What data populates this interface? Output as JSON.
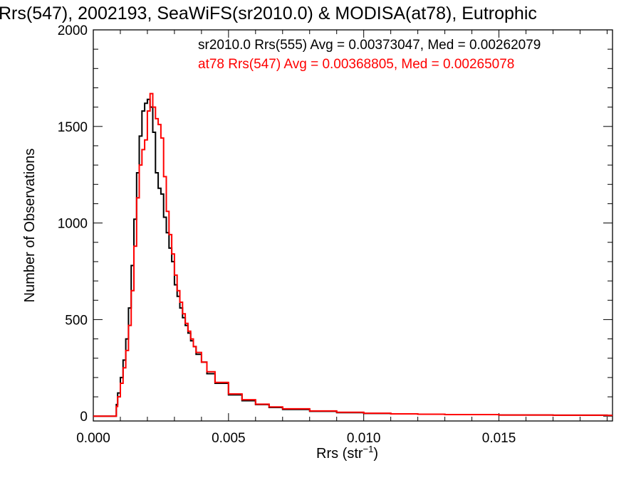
{
  "chart_data": {
    "type": "line",
    "title": "Rrs(547), 2002193, SeaWiFS(sr2010.0) & MODISA(at78), Eutrophic",
    "xlabel": "Rrs (str",
    "xlabel_sup": "−1",
    "xlabel_close": ")",
    "ylabel": "Number of Observations",
    "xlim": [
      0.0,
      0.0192
    ],
    "ylim": [
      -25,
      2000
    ],
    "x_ticks": [
      0.0,
      0.005,
      0.01,
      0.015
    ],
    "x_tick_labels": [
      "0.000",
      "0.005",
      "0.010",
      "0.015"
    ],
    "y_ticks": [
      0,
      500,
      1000,
      1500,
      2000
    ],
    "y_tick_labels": [
      "0",
      "500",
      "1000",
      "1500",
      "2000"
    ],
    "grid": false,
    "legend_position": "top-right",
    "series": [
      {
        "name": "sr2010.0 Rrs(555) Avg = 0.00373047, Med = 0.00262079",
        "color": "#000000",
        "x": [
          0.0,
          0.0008,
          0.00085,
          0.0009,
          0.001,
          0.0011,
          0.0012,
          0.0013,
          0.0014,
          0.0015,
          0.0016,
          0.0017,
          0.0018,
          0.0019,
          0.002,
          0.0021,
          0.0022,
          0.0023,
          0.0024,
          0.0025,
          0.0026,
          0.0027,
          0.0028,
          0.0029,
          0.003,
          0.0031,
          0.0032,
          0.0033,
          0.0034,
          0.0035,
          0.0036,
          0.0037,
          0.0038,
          0.004,
          0.0042,
          0.0045,
          0.005,
          0.0055,
          0.006,
          0.0065,
          0.007,
          0.008,
          0.009,
          0.01,
          0.011,
          0.012,
          0.013,
          0.015,
          0.017,
          0.019
        ],
        "values": [
          0,
          0,
          60,
          120,
          200,
          290,
          400,
          560,
          780,
          1020,
          1260,
          1450,
          1580,
          1620,
          1640,
          1600,
          1470,
          1260,
          1180,
          1150,
          1030,
          950,
          870,
          800,
          680,
          620,
          560,
          510,
          470,
          430,
          390,
          360,
          320,
          280,
          220,
          170,
          110,
          80,
          60,
          45,
          35,
          25,
          18,
          14,
          12,
          10,
          8,
          6,
          5,
          4
        ]
      },
      {
        "name": "at78 Rrs(547) Avg = 0.00368805, Med = 0.00265078",
        "color": "#ff0000",
        "x": [
          0.0,
          0.0008,
          0.00085,
          0.0009,
          0.001,
          0.0011,
          0.0012,
          0.0013,
          0.0014,
          0.0015,
          0.0016,
          0.0017,
          0.0018,
          0.0019,
          0.002,
          0.0021,
          0.0022,
          0.0023,
          0.0024,
          0.0025,
          0.0026,
          0.0027,
          0.0028,
          0.0029,
          0.003,
          0.0031,
          0.0032,
          0.0033,
          0.0034,
          0.0035,
          0.0036,
          0.0037,
          0.0038,
          0.004,
          0.0042,
          0.0045,
          0.005,
          0.0055,
          0.006,
          0.0065,
          0.007,
          0.008,
          0.009,
          0.01,
          0.011,
          0.012,
          0.013,
          0.015,
          0.017,
          0.019
        ],
        "values": [
          0,
          0,
          50,
          100,
          170,
          250,
          340,
          470,
          650,
          880,
          1130,
          1300,
          1380,
          1430,
          1580,
          1670,
          1600,
          1540,
          1510,
          1440,
          1240,
          1060,
          940,
          840,
          730,
          650,
          590,
          530,
          480,
          440,
          400,
          360,
          330,
          280,
          230,
          175,
          115,
          85,
          62,
          48,
          38,
          27,
          20,
          15,
          12,
          10,
          8,
          6,
          5,
          4
        ]
      }
    ]
  }
}
